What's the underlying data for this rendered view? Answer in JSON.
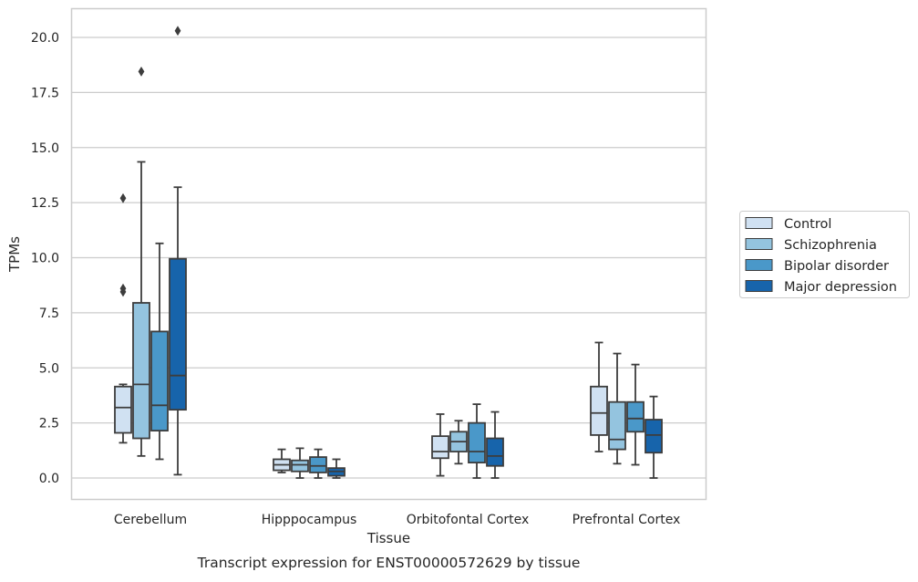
{
  "chart_data": {
    "type": "box",
    "xlabel": "Tissue",
    "ylabel": "TPMs",
    "caption": "Transcript expression for ENST00000572629 by tissue",
    "ylim": [
      -1.0,
      21.4
    ],
    "yticks": [
      0.0,
      2.5,
      5.0,
      7.5,
      10.0,
      12.5,
      15.0,
      17.5,
      20.0
    ],
    "ytick_labels": [
      "0.0",
      "2.5",
      "5.0",
      "7.5",
      "10.0",
      "12.5",
      "15.0",
      "17.5",
      "20.0"
    ],
    "grid": "horizontal",
    "legend_position": "right",
    "categories": [
      "Cerebellum",
      "Hipppocampus",
      "Orbitofontal Cortex",
      "Prefrontal Cortex"
    ],
    "series": [
      {
        "name": "Control",
        "color": "#d0e1f2",
        "boxes": [
          {
            "whislo": 1.6,
            "q1": 2.05,
            "med": 3.2,
            "q3": 4.15,
            "whishi": 4.25,
            "fliers": [
              8.45,
              8.6,
              12.7
            ]
          },
          {
            "whislo": 0.25,
            "q1": 0.35,
            "med": 0.6,
            "q3": 0.85,
            "whishi": 1.3,
            "fliers": []
          },
          {
            "whislo": 0.1,
            "q1": 0.9,
            "med": 1.2,
            "q3": 1.9,
            "whishi": 2.9,
            "fliers": []
          },
          {
            "whislo": 1.2,
            "q1": 1.95,
            "med": 2.95,
            "q3": 4.15,
            "whishi": 6.15,
            "fliers": []
          }
        ]
      },
      {
        "name": "Schizophrenia",
        "color": "#94c4df",
        "boxes": [
          {
            "whislo": 1.0,
            "q1": 1.8,
            "med": 4.25,
            "q3": 7.95,
            "whishi": 14.35,
            "fliers": [
              18.45
            ]
          },
          {
            "whislo": 0.0,
            "q1": 0.3,
            "med": 0.6,
            "q3": 0.8,
            "whishi": 1.35,
            "fliers": []
          },
          {
            "whislo": 0.65,
            "q1": 1.2,
            "med": 1.65,
            "q3": 2.1,
            "whishi": 2.6,
            "fliers": []
          },
          {
            "whislo": 0.65,
            "q1": 1.3,
            "med": 1.75,
            "q3": 3.45,
            "whishi": 5.65,
            "fliers": []
          }
        ]
      },
      {
        "name": "Bipolar disorder",
        "color": "#4a98c9",
        "boxes": [
          {
            "whislo": 0.85,
            "q1": 2.15,
            "med": 3.3,
            "q3": 6.65,
            "whishi": 10.65,
            "fliers": []
          },
          {
            "whislo": 0.0,
            "q1": 0.25,
            "med": 0.55,
            "q3": 0.95,
            "whishi": 1.3,
            "fliers": []
          },
          {
            "whislo": 0.0,
            "q1": 0.7,
            "med": 1.2,
            "q3": 2.5,
            "whishi": 3.35,
            "fliers": []
          },
          {
            "whislo": 0.6,
            "q1": 2.1,
            "med": 2.7,
            "q3": 3.45,
            "whishi": 5.15,
            "fliers": []
          }
        ]
      },
      {
        "name": "Major depression",
        "color": "#1764ab",
        "boxes": [
          {
            "whislo": 0.15,
            "q1": 3.1,
            "med": 4.65,
            "q3": 9.95,
            "whishi": 13.2,
            "fliers": [
              20.3
            ]
          },
          {
            "whislo": 0.0,
            "q1": 0.1,
            "med": 0.3,
            "q3": 0.45,
            "whishi": 0.85,
            "fliers": []
          },
          {
            "whislo": 0.0,
            "q1": 0.55,
            "med": 1.0,
            "q3": 1.8,
            "whishi": 3.0,
            "fliers": []
          },
          {
            "whislo": 0.0,
            "q1": 1.15,
            "med": 1.95,
            "q3": 2.65,
            "whishi": 3.7,
            "fliers": []
          }
        ]
      }
    ]
  },
  "colors": {
    "grid": "#cccccc",
    "frame": "#cccccc",
    "box_edge": "#3d3d3d",
    "text": "#262626"
  }
}
